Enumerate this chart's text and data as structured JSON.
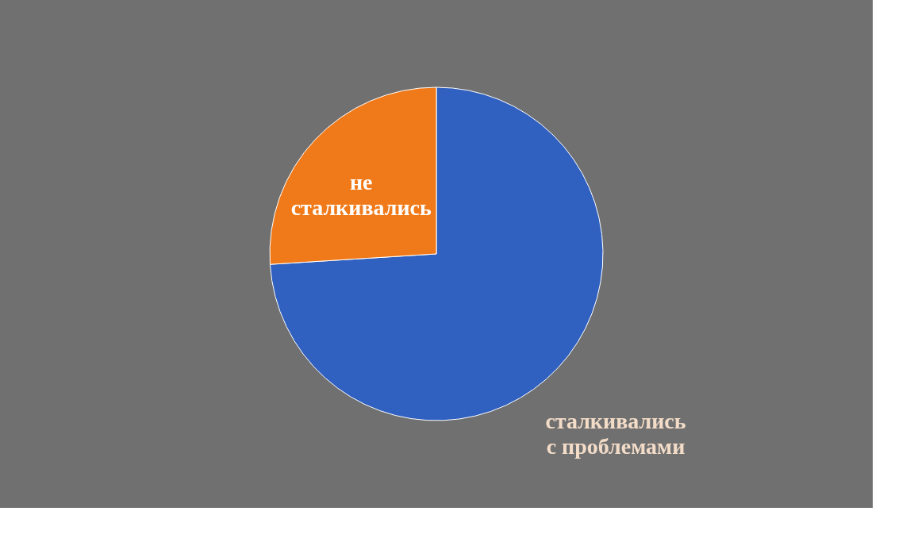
{
  "chart_data": {
    "type": "pie",
    "categories": [
      "сталкивались\nс проблемами",
      "не\nсталкивались"
    ],
    "values": [
      74,
      26
    ],
    "colors": [
      "#3060c0",
      "#f07a1a"
    ],
    "legend": false
  }
}
